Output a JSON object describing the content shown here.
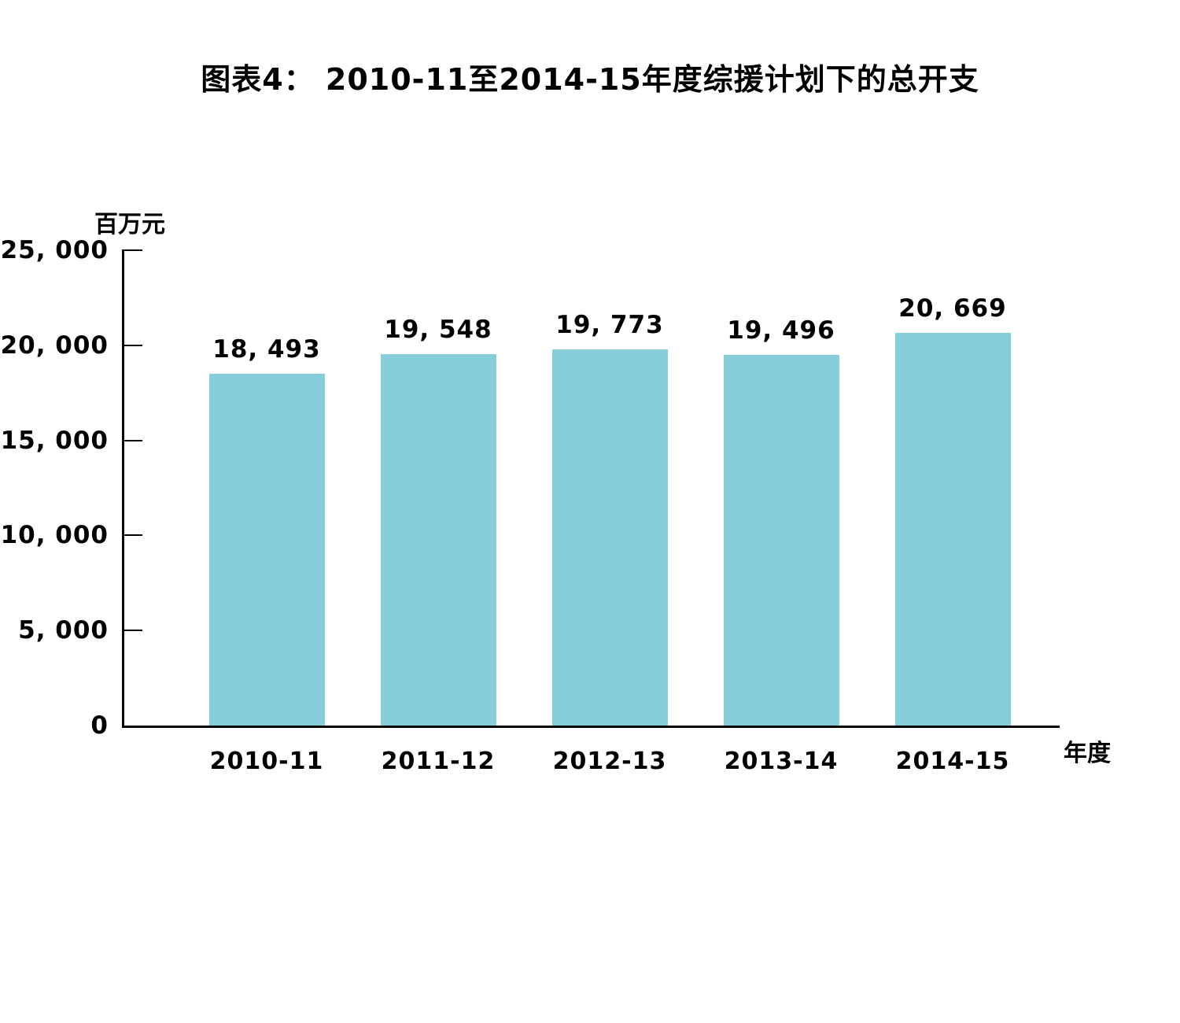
{
  "page": {
    "background": "#FFFFFF"
  },
  "axes": {
    "y_unit_label": "百万元",
    "x_axis_label": "年度"
  },
  "chart_data": {
    "type": "bar",
    "title": "图表4： 2010-11至2014-15年度综援计划下的总开支",
    "categories": [
      "2010-11",
      "2011-12",
      "2012-13",
      "2013-14",
      "2014-15"
    ],
    "values": [
      18493,
      19548,
      19773,
      19496,
      20669
    ],
    "value_labels": [
      "18, 493",
      "19, 548",
      "19, 773",
      "19, 496",
      "20, 669"
    ],
    "xlabel": "年度",
    "ylabel": "百万元",
    "ylim": [
      0,
      25000
    ],
    "y_ticks": [
      {
        "value": 25000,
        "label": "25, 000"
      },
      {
        "value": 20000,
        "label": "20, 000"
      },
      {
        "value": 15000,
        "label": "15, 000"
      },
      {
        "value": 10000,
        "label": "10, 000"
      },
      {
        "value": 5000,
        "label": "5, 000"
      },
      {
        "value": 0,
        "label": "0"
      }
    ],
    "grid": false,
    "legend": null,
    "bar_color": "#87CEDB"
  },
  "colors": {
    "bar": "#87CEDB",
    "axis": "#000000",
    "text": "#000000",
    "background": "#FFFFFF"
  }
}
